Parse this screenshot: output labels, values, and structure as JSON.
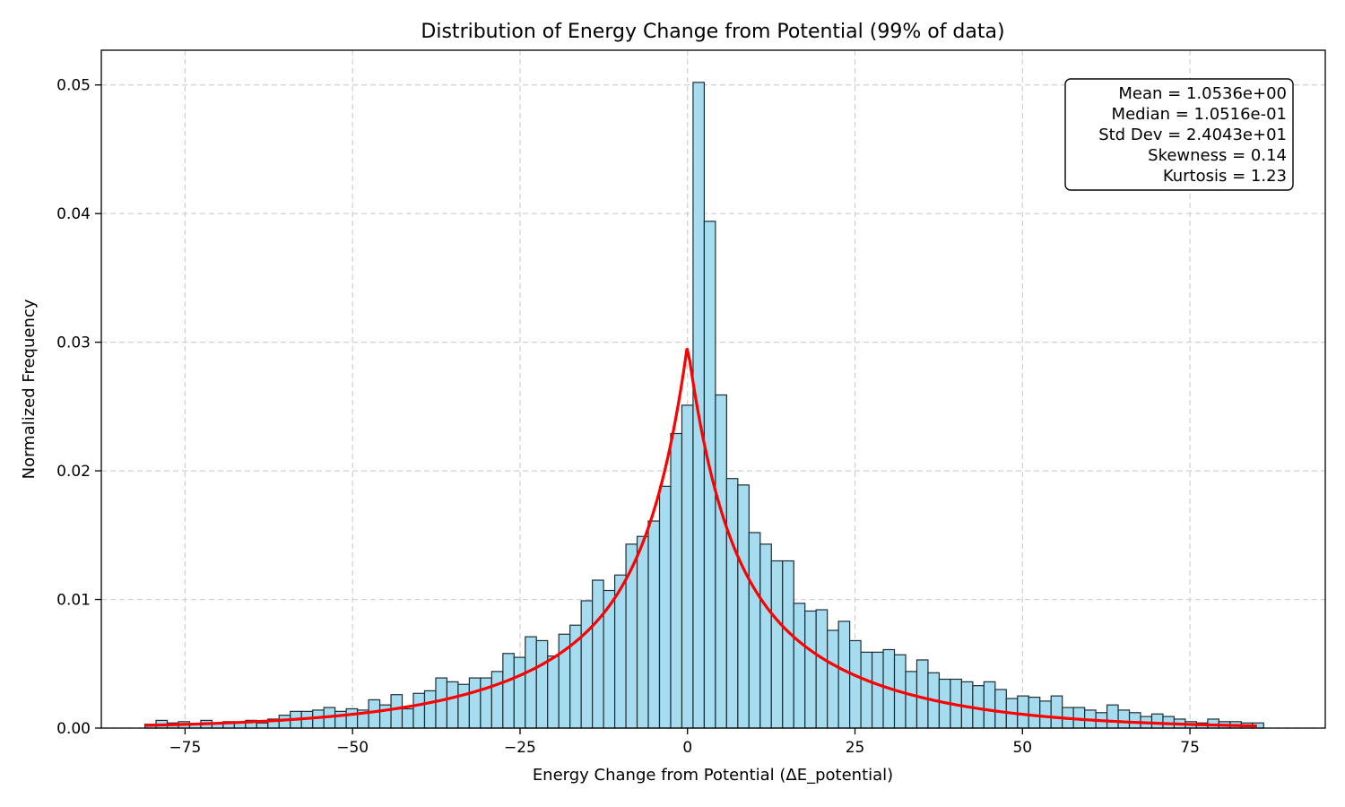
{
  "chart_data": {
    "type": "bar",
    "title": "Distribution of Energy Change from Potential (99% of data)",
    "xlabel": "Energy Change from Potential (ΔE_potential)",
    "ylabel": "Normalized Frequency",
    "xlim": [
      -87.5,
      95.2
    ],
    "ylim": [
      0,
      0.0527
    ],
    "xticks": [
      -75,
      -50,
      -25,
      0,
      25,
      50,
      75
    ],
    "xtick_labels": [
      "−75",
      "−50",
      "−25",
      "0",
      "25",
      "50",
      "75"
    ],
    "yticks": [
      0.0,
      0.01,
      0.02,
      0.03,
      0.04,
      0.05
    ],
    "ytick_labels": [
      "0.00",
      "0.01",
      "0.02",
      "0.03",
      "0.04",
      "0.05"
    ],
    "grid": true,
    "bins": {
      "start": -81.0,
      "width": 1.67,
      "values": [
        0.0003,
        0.0006,
        0.0004,
        0.0005,
        0.0003,
        0.0006,
        0.0004,
        0.0005,
        0.0004,
        0.0006,
        0.0004,
        0.0007,
        0.001,
        0.0013,
        0.0013,
        0.0014,
        0.0016,
        0.0013,
        0.0015,
        0.0014,
        0.0022,
        0.0018,
        0.0026,
        0.0015,
        0.0027,
        0.0029,
        0.0039,
        0.0036,
        0.0034,
        0.0039,
        0.0039,
        0.0044,
        0.0058,
        0.0055,
        0.0071,
        0.0068,
        0.0056,
        0.0073,
        0.008,
        0.0099,
        0.0115,
        0.0107,
        0.0119,
        0.0143,
        0.0149,
        0.0161,
        0.0188,
        0.0229,
        0.0251,
        0.0502,
        0.0394,
        0.0259,
        0.0194,
        0.0189,
        0.0152,
        0.0143,
        0.013,
        0.013,
        0.0097,
        0.0091,
        0.0092,
        0.0076,
        0.0083,
        0.0068,
        0.0059,
        0.0059,
        0.0061,
        0.0057,
        0.0044,
        0.0053,
        0.0043,
        0.0038,
        0.0038,
        0.0036,
        0.0033,
        0.0036,
        0.003,
        0.0023,
        0.0025,
        0.0024,
        0.0021,
        0.0025,
        0.0016,
        0.0016,
        0.0014,
        0.0012,
        0.0018,
        0.0014,
        0.0012,
        0.0009,
        0.0011,
        0.0009,
        0.0007,
        0.0005,
        0.0004,
        0.0007,
        0.0005,
        0.0005,
        0.0004,
        0.0004
      ]
    },
    "fit_curve": {
      "type": "laplace-like density",
      "center": 0,
      "peak": 0.0298,
      "x_range": [
        -81,
        85
      ]
    },
    "colors": {
      "bar_fill": "#a6dcef",
      "bar_edge": "#1f2d33",
      "curve": "#ff0000"
    },
    "stats_box": {
      "placement": "top-right",
      "lines": [
        "Mean = 1.0536e+00",
        "Median = 1.0516e-01",
        "Std Dev = 2.4043e+01",
        "Skewness = 0.14",
        "Kurtosis = 1.23"
      ]
    }
  }
}
